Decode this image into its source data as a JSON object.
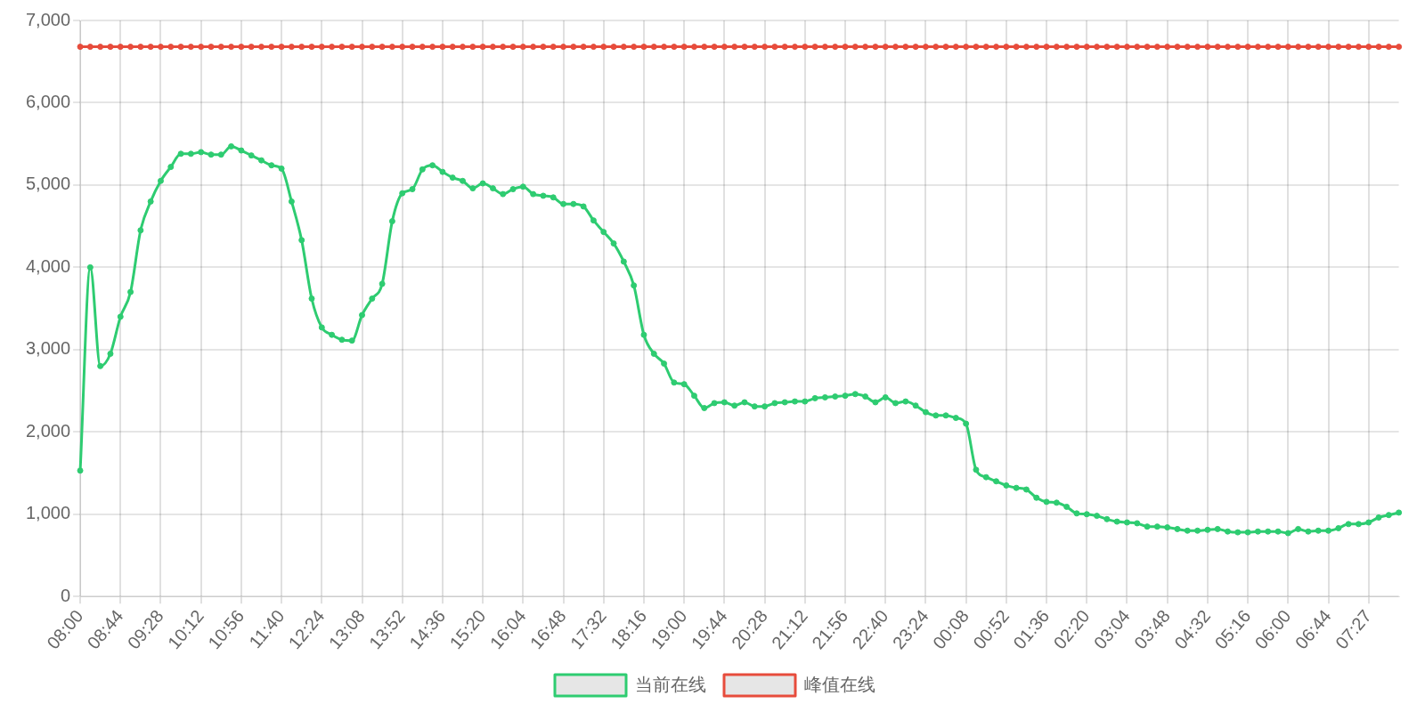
{
  "chart_data": {
    "type": "line",
    "categories": [
      "08:00",
      null,
      null,
      null,
      "08:44",
      null,
      null,
      null,
      "09:28",
      null,
      null,
      null,
      "10:12",
      null,
      null,
      null,
      "10:56",
      null,
      null,
      null,
      "11:40",
      null,
      null,
      null,
      "12:24",
      null,
      null,
      null,
      "13:08",
      null,
      null,
      null,
      "13:52",
      null,
      null,
      null,
      "14:36",
      null,
      null,
      null,
      "15:20",
      null,
      null,
      null,
      "16:04",
      null,
      null,
      null,
      "16:48",
      null,
      null,
      null,
      "17:32",
      null,
      null,
      null,
      "18:16",
      null,
      null,
      null,
      "19:00",
      null,
      null,
      null,
      "19:44",
      null,
      null,
      null,
      "20:28",
      null,
      null,
      null,
      "21:12",
      null,
      null,
      null,
      "21:56",
      null,
      null,
      null,
      "22:40",
      null,
      null,
      null,
      "23:24",
      null,
      null,
      null,
      "00:08",
      null,
      null,
      null,
      "00:52",
      null,
      null,
      null,
      "01:36",
      null,
      null,
      null,
      "02:20",
      null,
      null,
      null,
      "03:04",
      null,
      null,
      null,
      "03:48",
      null,
      null,
      null,
      "04:32",
      null,
      null,
      null,
      "05:16",
      null,
      null,
      null,
      "06:00",
      null,
      null,
      null,
      "06:44",
      null,
      null,
      null,
      "07:27",
      null,
      null,
      null
    ],
    "series": [
      {
        "name": "当前在线",
        "color": "#2ecc71",
        "values": [
          1530,
          4000,
          2800,
          2950,
          3400,
          3700,
          4450,
          4800,
          5050,
          5220,
          5380,
          5380,
          5400,
          5370,
          5370,
          5470,
          5420,
          5360,
          5300,
          5240,
          5200,
          4800,
          4330,
          3620,
          3270,
          3180,
          3120,
          3110,
          3420,
          3620,
          3800,
          4560,
          4900,
          4950,
          5190,
          5240,
          5160,
          5090,
          5050,
          4960,
          5020,
          4960,
          4890,
          4950,
          4980,
          4890,
          4870,
          4850,
          4770,
          4770,
          4740,
          4570,
          4430,
          4290,
          4070,
          3780,
          3180,
          2950,
          2830,
          2600,
          2580,
          2440,
          2290,
          2350,
          2360,
          2320,
          2360,
          2310,
          2310,
          2350,
          2360,
          2370,
          2370,
          2410,
          2420,
          2430,
          2440,
          2460,
          2430,
          2360,
          2420,
          2350,
          2370,
          2320,
          2240,
          2200,
          2200,
          2170,
          2100,
          1540,
          1450,
          1400,
          1350,
          1320,
          1300,
          1200,
          1150,
          1140,
          1090,
          1010,
          1000,
          980,
          940,
          910,
          900,
          890,
          850,
          850,
          840,
          820,
          800,
          800,
          810,
          820,
          790,
          780,
          780,
          790,
          790,
          790,
          770,
          820,
          790,
          800,
          800,
          830,
          880,
          880,
          900,
          960,
          990,
          1020
        ]
      },
      {
        "name": "峰值在线",
        "color": "#e74c3c",
        "values": [
          6680,
          6680,
          6680,
          6680,
          6680,
          6680,
          6680,
          6680,
          6680,
          6680,
          6680,
          6680,
          6680,
          6680,
          6680,
          6680,
          6680,
          6680,
          6680,
          6680,
          6680,
          6680,
          6680,
          6680,
          6680,
          6680,
          6680,
          6680,
          6680,
          6680,
          6680,
          6680,
          6680,
          6680,
          6680,
          6680,
          6680,
          6680,
          6680,
          6680,
          6680,
          6680,
          6680,
          6680,
          6680,
          6680,
          6680,
          6680,
          6680,
          6680,
          6680,
          6680,
          6680,
          6680,
          6680,
          6680,
          6680,
          6680,
          6680,
          6680,
          6680,
          6680,
          6680,
          6680,
          6680,
          6680,
          6680,
          6680,
          6680,
          6680,
          6680,
          6680,
          6680,
          6680,
          6680,
          6680,
          6680,
          6680,
          6680,
          6680,
          6680,
          6680,
          6680,
          6680,
          6680,
          6680,
          6680,
          6680,
          6680,
          6680,
          6680,
          6680,
          6680,
          6680,
          6680,
          6680,
          6680,
          6680,
          6680,
          6680,
          6680,
          6680,
          6680,
          6680,
          6680,
          6680,
          6680,
          6680,
          6680,
          6680,
          6680,
          6680,
          6680,
          6680,
          6680,
          6680,
          6680,
          6680,
          6680,
          6680,
          6680,
          6680,
          6680,
          6680,
          6680,
          6680,
          6680,
          6680,
          6680,
          6680,
          6680,
          6680
        ]
      }
    ],
    "ylim": [
      0,
      7000
    ],
    "yticks": [
      0,
      {
        "value": 1000,
        "label": "1,000"
      },
      {
        "value": 2000,
        "label": "2,000"
      },
      {
        "value": 3000,
        "label": "3,000"
      },
      {
        "value": 4000,
        "label": "4,000"
      },
      {
        "value": 5000,
        "label": "5,000"
      },
      {
        "value": 6000,
        "label": "6,000"
      },
      {
        "value": 7000,
        "label": "7,000"
      }
    ],
    "grid": true,
    "legend": "bottom",
    "marker": "circle",
    "line_style": "solid"
  }
}
